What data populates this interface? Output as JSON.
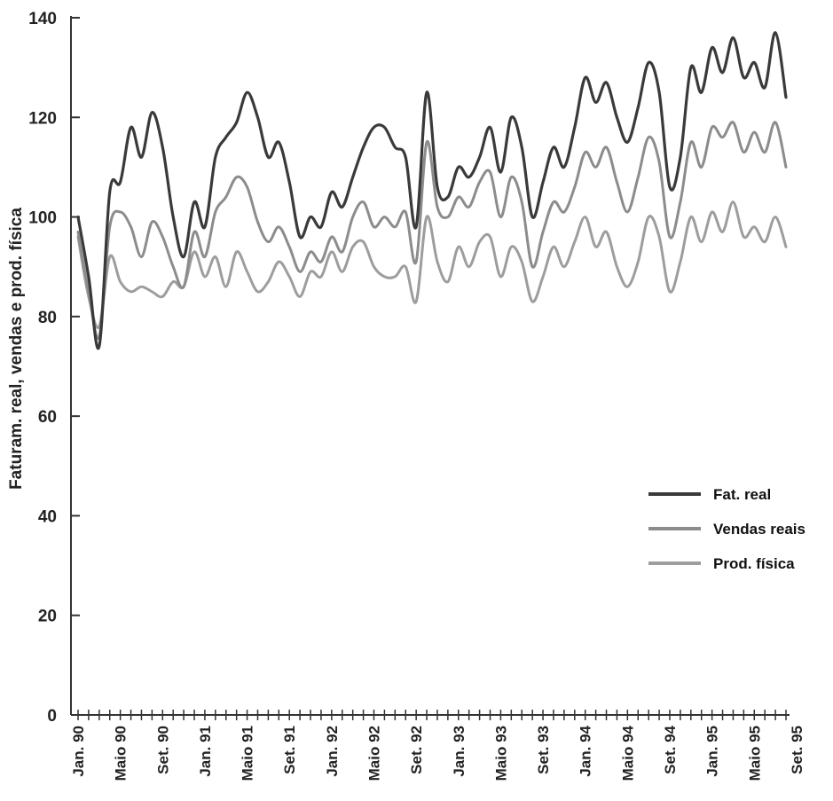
{
  "chart_data": {
    "type": "line",
    "ylabel": "Faturam. real, vendas e prod. física",
    "xlabel": "",
    "ylim": [
      0,
      140
    ],
    "yticks": [
      0,
      20,
      40,
      60,
      80,
      100,
      120,
      140
    ],
    "x_tick_labels": [
      "Jan. 90",
      "Maio 90",
      "Set. 90",
      "Jan. 91",
      "Maio 91",
      "Set. 91",
      "Jan. 92",
      "Maio 92",
      "Set. 92",
      "Jan. 93",
      "Maio 93",
      "Set. 93",
      "Jan. 94",
      "Maio 94",
      "Set. 94",
      "Jan. 95",
      "Maio 95",
      "Set. 95"
    ],
    "grid": false,
    "legend_position": "right",
    "series": [
      {
        "name": "Fat. real",
        "color": "#3a3a3a",
        "values": [
          100,
          88,
          74,
          105,
          107,
          118,
          112,
          121,
          114,
          100,
          92,
          103,
          98,
          112,
          116,
          119,
          125,
          120,
          112,
          115,
          107,
          96,
          100,
          98,
          105,
          102,
          108,
          114,
          118,
          118,
          114,
          112,
          98,
          125,
          106,
          104,
          110,
          108,
          112,
          118,
          109,
          120,
          114,
          100,
          107,
          114,
          110,
          118,
          128,
          123,
          127,
          120,
          115,
          122,
          131,
          125,
          106,
          112,
          130,
          125,
          134,
          129,
          136,
          128,
          131,
          126,
          137,
          124
        ]
      },
      {
        "name": "Vendas reais",
        "color": "#8c8c8c",
        "values": [
          97,
          85,
          76,
          98,
          101,
          98,
          92,
          99,
          96,
          90,
          86,
          97,
          92,
          101,
          104,
          108,
          106,
          99,
          95,
          98,
          94,
          89,
          93,
          91,
          96,
          93,
          100,
          103,
          98,
          100,
          98,
          101,
          91,
          115,
          102,
          100,
          104,
          102,
          107,
          109,
          100,
          108,
          103,
          90,
          97,
          103,
          101,
          106,
          113,
          110,
          114,
          107,
          101,
          108,
          116,
          111,
          96,
          103,
          115,
          110,
          118,
          116,
          119,
          113,
          117,
          113,
          119,
          110
        ]
      },
      {
        "name": "Prod. física",
        "color": "#9d9d9d",
        "values": [
          96,
          84,
          78,
          92,
          87,
          85,
          86,
          85,
          84,
          87,
          86,
          93,
          88,
          92,
          86,
          93,
          89,
          85,
          87,
          91,
          88,
          84,
          89,
          88,
          93,
          89,
          94,
          95,
          90,
          88,
          88,
          90,
          83,
          100,
          91,
          87,
          94,
          90,
          95,
          96,
          88,
          94,
          91,
          83,
          88,
          94,
          90,
          95,
          100,
          94,
          97,
          90,
          86,
          91,
          100,
          96,
          85,
          91,
          100,
          95,
          101,
          97,
          103,
          96,
          98,
          95,
          100,
          94
        ]
      }
    ]
  }
}
